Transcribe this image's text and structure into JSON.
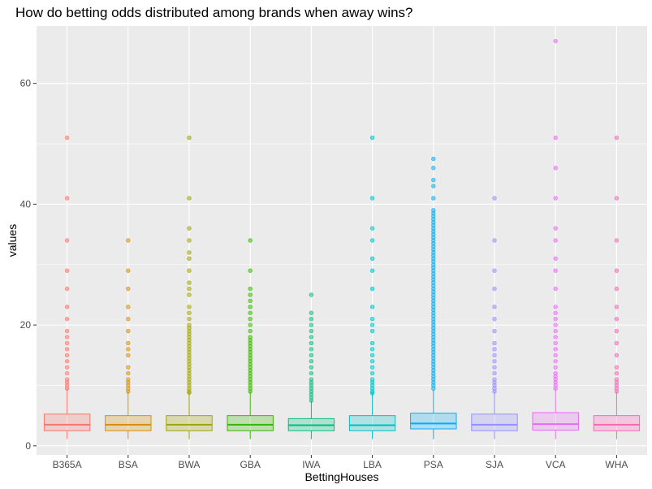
{
  "chart_data": {
    "type": "box",
    "title": "How do betting odds distributed among brands when away wins?",
    "xlabel": "BettingHouses",
    "ylabel": "values",
    "ylim": [
      -1.5,
      69.5
    ],
    "yticks": [
      0,
      20,
      40,
      60
    ],
    "grid": true,
    "legend": "none",
    "panel_background": "#ebebeb",
    "grid_color": "#ffffff",
    "boxes": [
      {
        "name": "B365A",
        "color": "#F8766D",
        "whisker_low": 1.1,
        "q1": 2.5,
        "median": 3.5,
        "q3": 5.25,
        "whisker_high": 9.5,
        "outliers": [
          9.5,
          10,
          10.5,
          11,
          12,
          13,
          14,
          15,
          16,
          17,
          18,
          19,
          21,
          23,
          26,
          29,
          34,
          41,
          51
        ]
      },
      {
        "name": "BSA",
        "color": "#D89000",
        "whisker_low": 1.1,
        "q1": 2.5,
        "median": 3.5,
        "q3": 5.0,
        "whisker_high": 9.0,
        "outliers": [
          9.0,
          9.5,
          10,
          10.5,
          11,
          12,
          13,
          15,
          16,
          17,
          19,
          21,
          23,
          26,
          29,
          34
        ]
      },
      {
        "name": "BWA",
        "color": "#A3A500",
        "whisker_low": 1.1,
        "q1": 2.5,
        "median": 3.5,
        "q3": 5.0,
        "whisker_high": 8.8,
        "outliers": [
          8.8,
          9,
          9.5,
          10,
          10.5,
          11,
          11.5,
          12,
          12.5,
          13,
          13.5,
          14,
          14.5,
          15,
          15.5,
          16,
          16.5,
          17,
          17.5,
          18,
          18.5,
          19,
          19.5,
          20,
          21,
          22,
          23,
          25,
          26,
          27,
          29,
          31,
          32,
          34,
          36,
          41,
          51
        ]
      },
      {
        "name": "GBA",
        "color": "#39B600",
        "whisker_low": 1.1,
        "q1": 2.5,
        "median": 3.5,
        "q3": 5.0,
        "whisker_high": 9.0,
        "outliers": [
          9.0,
          9.5,
          10,
          10.5,
          11,
          11.5,
          12,
          12.5,
          13,
          13.5,
          14,
          14.5,
          15,
          15.5,
          16,
          16.5,
          17,
          17.5,
          18,
          19,
          20,
          21,
          22,
          23,
          24,
          25,
          26,
          29,
          34
        ]
      },
      {
        "name": "IWA",
        "color": "#00BF7D",
        "whisker_low": 1.1,
        "q1": 2.5,
        "median": 3.4,
        "q3": 4.5,
        "whisker_high": 7.5,
        "outliers": [
          7.5,
          8,
          8.5,
          9,
          9.5,
          10,
          10.5,
          11,
          12,
          13,
          14,
          15,
          16,
          17,
          18,
          19,
          20,
          21,
          22,
          25
        ]
      },
      {
        "name": "LBA",
        "color": "#00BFC4",
        "whisker_low": 1.1,
        "q1": 2.5,
        "median": 3.4,
        "q3": 5.0,
        "whisker_high": 8.7,
        "outliers": [
          8.7,
          9,
          9.5,
          10,
          10.5,
          11,
          12,
          13,
          14,
          15,
          16,
          17,
          19,
          20,
          21,
          23,
          26,
          29,
          31,
          34,
          36,
          41,
          51
        ]
      },
      {
        "name": "PSA",
        "color": "#00B0F6",
        "whisker_low": 1.1,
        "q1": 2.8,
        "median": 3.7,
        "q3": 5.4,
        "whisker_high": 9.3,
        "outliers": [
          9.5,
          10,
          10.5,
          11,
          11.5,
          12,
          12.5,
          13,
          13.5,
          14,
          14.5,
          15,
          15.5,
          16,
          16.5,
          17,
          17.5,
          18,
          18.5,
          19,
          19.5,
          20,
          20.5,
          21,
          21.5,
          22,
          22.5,
          23,
          23.5,
          24,
          24.5,
          25,
          25.5,
          26,
          26.5,
          27,
          27.5,
          28,
          28.5,
          29,
          29.5,
          30,
          30.5,
          31,
          31.5,
          32,
          32.5,
          33,
          33.5,
          34,
          34.5,
          35,
          35.5,
          36,
          36.5,
          37,
          37.5,
          38,
          38.5,
          39,
          41,
          43,
          44,
          46,
          47.5
        ]
      },
      {
        "name": "SJA",
        "color": "#9590FF",
        "whisker_low": 1.1,
        "q1": 2.5,
        "median": 3.5,
        "q3": 5.25,
        "whisker_high": 9.0,
        "outliers": [
          9.0,
          9.5,
          10,
          10.5,
          11,
          12,
          13,
          14,
          15,
          16,
          17,
          19,
          21,
          23,
          26,
          29,
          34,
          41
        ]
      },
      {
        "name": "VCA",
        "color": "#E76BF3",
        "whisker_low": 1.1,
        "q1": 2.6,
        "median": 3.6,
        "q3": 5.5,
        "whisker_high": 9.5,
        "outliers": [
          9.5,
          10,
          10.5,
          11,
          11.5,
          12,
          13,
          14,
          15,
          16,
          17,
          18,
          19,
          20,
          21,
          22,
          23,
          26,
          29,
          31,
          34,
          36,
          41,
          46,
          51,
          67
        ]
      },
      {
        "name": "WHA",
        "color": "#FF62BC",
        "whisker_low": 1.1,
        "q1": 2.5,
        "median": 3.5,
        "q3": 5.0,
        "whisker_high": 9.0,
        "outliers": [
          9.0,
          9.5,
          10,
          10.5,
          11,
          12,
          13,
          15,
          17,
          19,
          21,
          23,
          26,
          29,
          34,
          41,
          51
        ]
      }
    ]
  }
}
